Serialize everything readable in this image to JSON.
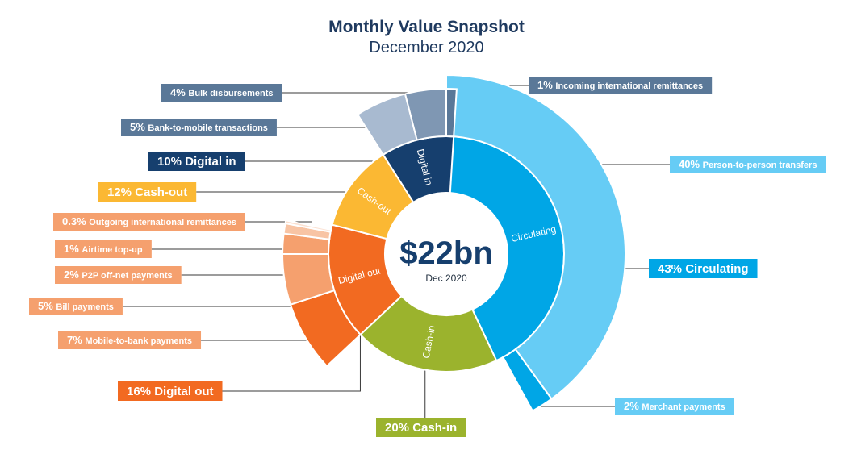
{
  "title": "Monthly Value Snapshot",
  "subtitle": "December 2020",
  "center": {
    "value": "$22bn",
    "label": "Dec 2020"
  },
  "colors": {
    "circulating": "#00a6e6",
    "circulating_light": "#66ccf5",
    "cash_in": "#9bb32d",
    "digital_out": "#f26a21",
    "digital_out_light": "#f5a06e",
    "cash_out": "#fbb833",
    "digital_in": "#163f6e",
    "digital_in_light": "#7f97b3",
    "title": "#1f3a5f"
  },
  "chart_data": {
    "type": "sunburst",
    "title": "Monthly Value Snapshot",
    "subtitle": "December 2020",
    "total": "$22bn",
    "inner_ring": [
      {
        "name": "Circulating",
        "ring_label": "Circulating",
        "value": 43,
        "callout": "43% Circulating"
      },
      {
        "name": "Cash-in",
        "ring_label": "Cash-in",
        "value": 20,
        "callout": "20% Cash-in"
      },
      {
        "name": "Digital out",
        "ring_label": "Digital out",
        "value": 16,
        "callout": "16% Digital out"
      },
      {
        "name": "Cash-out",
        "ring_label": "Cash-out",
        "value": 12,
        "callout": "12% Cash-out"
      },
      {
        "name": "Digital in",
        "ring_label": "Digital in",
        "value": 10,
        "callout": "10% Digital in"
      }
    ],
    "outer_ring": [
      {
        "parent": "Circulating",
        "name": "Person-to-person transfers",
        "value": 40,
        "pct": "40%"
      },
      {
        "parent": "Circulating",
        "name": "Merchant payments",
        "value": 2,
        "pct": "2%"
      },
      {
        "parent": "Digital out",
        "name": "Mobile-to-bank payments",
        "value": 7,
        "pct": "7%"
      },
      {
        "parent": "Digital out",
        "name": "Bill payments",
        "value": 5,
        "pct": "5%"
      },
      {
        "parent": "Digital out",
        "name": "P2P off-net payments",
        "value": 2,
        "pct": "2%"
      },
      {
        "parent": "Digital out",
        "name": "Airtime top-up",
        "value": 1,
        "pct": "1%"
      },
      {
        "parent": "Digital out",
        "name": "Outgoing international remittances",
        "value": 0.3,
        "pct": "0.3%"
      },
      {
        "parent": "Digital in",
        "name": "Bank-to-mobile transactions",
        "value": 5,
        "pct": "5%"
      },
      {
        "parent": "Digital in",
        "name": "Bulk disbursements",
        "value": 4,
        "pct": "4%"
      },
      {
        "parent": "Digital in",
        "name": "Incoming international remittances",
        "value": 1,
        "pct": "1%"
      }
    ]
  }
}
